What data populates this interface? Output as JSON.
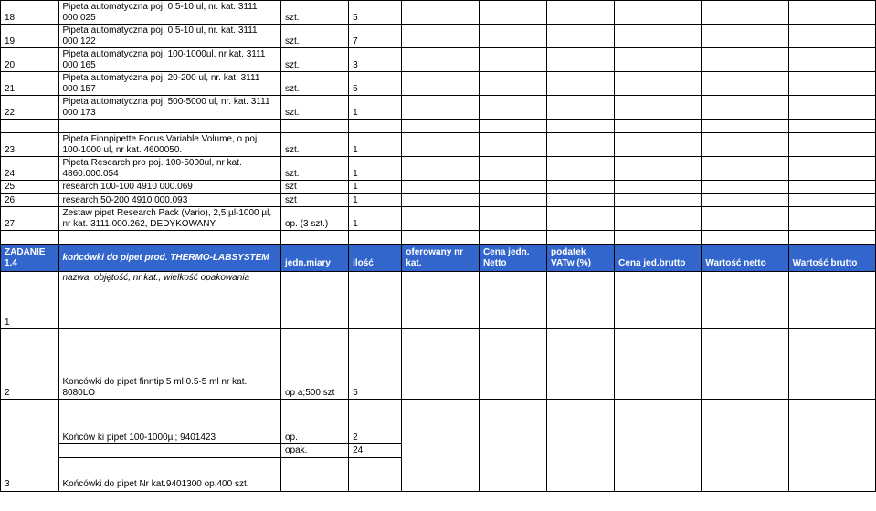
{
  "rows_top": [
    {
      "n": "18",
      "desc": "Pipeta automatyczna poj. 0,5-10 ul, nr. kat. 3111 000.025",
      "unit": "szt.",
      "qty": "5"
    },
    {
      "n": "19",
      "desc": "Pipeta automatyczna poj. 0,5-10 ul, nr. kat. 3111 000.122",
      "unit": "szt.",
      "qty": "7"
    },
    {
      "n": "20",
      "desc": "Pipeta automatyczna poj. 100-1000ul, nr kat. 3111 000.165",
      "unit": "szt.",
      "qty": "3"
    },
    {
      "n": "21",
      "desc": "Pipeta automatyczna poj. 20-200 ul, nr. kat. 3111 000.157",
      "unit": "szt.",
      "qty": "5"
    },
    {
      "n": "22",
      "desc": "Pipeta automatyczna poj. 500-5000 ul, nr. kat. 3111 000.173",
      "unit": "szt.",
      "qty": "1"
    }
  ],
  "rows_mid": [
    {
      "n": "23",
      "desc": "Pipeta Finnpipette Focus Variable Volume, o poj. 100-1000 ul, nr kat. 4600050.",
      "unit": "szt.",
      "qty": "1"
    },
    {
      "n": "24",
      "desc": "Pipeta Research pro poj. 100-5000ul, nr kat. 4860.000.054",
      "unit": "szt.",
      "qty": "1"
    },
    {
      "n": "25",
      "desc": "research 100-100 4910 000.069",
      "unit": "szt",
      "qty": "1"
    },
    {
      "n": "26",
      "desc": "research 50-200 4910 000.093",
      "unit": "szt",
      "qty": "1"
    },
    {
      "n": "27",
      "desc": "Zestaw pipet Research Pack (Vario), 2,5 µl-1000 µl, nr kat. 3111.000.262, DEDYKOWANY",
      "unit": "op. (3 szt.)",
      "qty": "1"
    }
  ],
  "header": {
    "task": "ZADANIE 1.4",
    "b": "końcówki do pipet prod. THERMO-LABSYSTEM",
    "c": "jedn.miary",
    "d": "ilość",
    "e": "oferowany nr kat.",
    "f": "Cena jedn. Netto",
    "g": "podatek VATw (%)",
    "h": "Cena jed.brutto",
    "i": "Wartość netto",
    "j": "Wartość brutto"
  },
  "r1": {
    "n": "1",
    "desc": "nazwa, objętość, nr kat., wielkość opakowania"
  },
  "r2": {
    "n": "2",
    "desc": "Koncówki do pipet finntip 5 ml 0.5-5 ml nr kat. 8080LO",
    "unit": "op a;500 szt",
    "qty": "5"
  },
  "r3a": {
    "n": "3",
    "desc": "Końców ki pipet 100-1000µl; 9401423",
    "unit": "op.",
    "qty": "2"
  },
  "r3b": {
    "unit": "opak.",
    "qty": "24"
  },
  "r3c": {
    "desc": "Końcówki do pipet Nr kat.9401300 op.400 szt."
  }
}
